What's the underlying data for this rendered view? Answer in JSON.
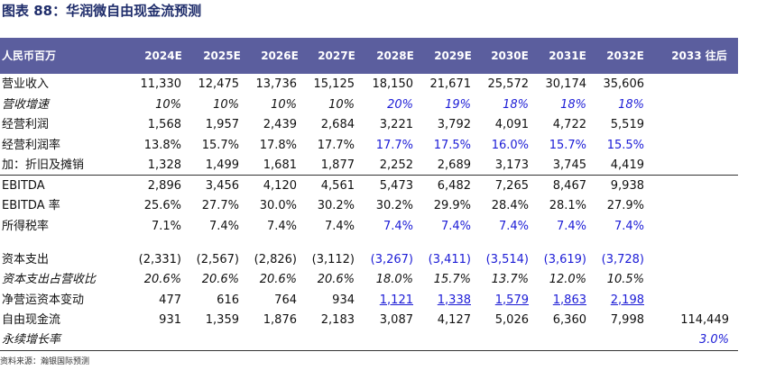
{
  "title": "图表 88：华润微自由现金流预测",
  "table": {
    "header": [
      "人民币百万",
      "2024E",
      "2025E",
      "2026E",
      "2027E",
      "2028E",
      "2029E",
      "2030E",
      "2031E",
      "2032E",
      "2033 往后"
    ],
    "rows": [
      {
        "label": "营业收入",
        "cells": [
          "11,330",
          "12,475",
          "13,736",
          "15,125",
          "18,150",
          "21,671",
          "25,572",
          "30,174",
          "35,606"
        ]
      },
      {
        "label": "营收增速",
        "cells": [
          "10%",
          "10%",
          "10%",
          "10%",
          "20%",
          "19%",
          "18%",
          "18%",
          "18%"
        ]
      },
      {
        "label": "经营利润",
        "cells": [
          "1,568",
          "1,957",
          "2,439",
          "2,684",
          "3,221",
          "3,792",
          "4,091",
          "4,722",
          "5,519"
        ]
      },
      {
        "label": "经营利润率",
        "cells": [
          "13.8%",
          "15.7%",
          "17.8%",
          "17.7%",
          "17.7%",
          "17.5%",
          "16.0%",
          "15.7%",
          "15.5%"
        ]
      },
      {
        "label": "加：折旧及摊销",
        "cells": [
          "1,328",
          "1,499",
          "1,681",
          "1,877",
          "2,252",
          "2,689",
          "3,173",
          "3,745",
          "4,419"
        ]
      },
      {
        "label": "EBITDA",
        "cells": [
          "2,896",
          "3,456",
          "4,120",
          "4,561",
          "5,473",
          "6,482",
          "7,265",
          "8,467",
          "9,938"
        ]
      },
      {
        "label": "EBITDA 率",
        "cells": [
          "25.6%",
          "27.7%",
          "30.0%",
          "30.2%",
          "30.2%",
          "29.9%",
          "28.4%",
          "28.1%",
          "27.9%"
        ]
      },
      {
        "label": "所得税率",
        "cells": [
          "7.1%",
          "7.4%",
          "7.4%",
          "7.4%",
          "7.4%",
          "7.4%",
          "7.4%",
          "7.4%",
          "7.4%"
        ]
      },
      {
        "label": "资本支出",
        "cells": [
          "(2,331)",
          "(2,567)",
          "(2,826)",
          "(3,112)",
          "(3,267)",
          "(3,411)",
          "(3,514)",
          "(3,619)",
          "(3,728)"
        ]
      },
      {
        "label": "资本支出占营收比",
        "cells": [
          "20.6%",
          "20.6%",
          "20.6%",
          "20.6%",
          "18.0%",
          "15.7%",
          "13.7%",
          "12.0%",
          "10.5%"
        ]
      },
      {
        "label": "净营运资本变动",
        "cells": [
          "477",
          "616",
          "764",
          "934",
          "1,121",
          "1,338",
          "1,579",
          "1,863",
          "2,198"
        ]
      },
      {
        "label": "自由现金流",
        "cells": [
          "931",
          "1,359",
          "1,876",
          "2,183",
          "3,087",
          "4,127",
          "5,026",
          "6,360",
          "7,998",
          "114,449"
        ]
      },
      {
        "label": "永续增长率",
        "cells": [
          null,
          null,
          null,
          null,
          null,
          null,
          null,
          null,
          null,
          "3.0%"
        ]
      }
    ]
  },
  "source": "资料来源：瀚银国际预测"
}
